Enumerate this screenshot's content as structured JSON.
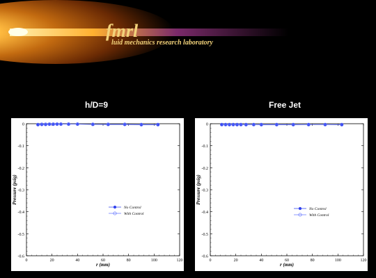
{
  "banner": {
    "logo_text": "fmrl",
    "subtitle": "luid mechanics research laboratory"
  },
  "panels": [
    {
      "title": "h/D=9"
    },
    {
      "title": "Free Jet"
    }
  ],
  "chart_data": [
    {
      "type": "scatter",
      "title": "h/D=9",
      "xlabel": "r (mm)",
      "ylabel": "Pressure (psig)",
      "xlim": [
        0,
        120
      ],
      "ylim": [
        -0.6,
        0
      ],
      "xticks": [
        "0",
        "20",
        "40",
        "60",
        "80",
        "100",
        "120"
      ],
      "yticks": [
        "0",
        "-0.1",
        "-0.2",
        "-0.3",
        "-0.4",
        "-0.5",
        "-0.6"
      ],
      "legend_position": "bottom-center",
      "series": [
        {
          "name": "No Control",
          "marker": "filled-circle",
          "color": "#3344ee",
          "x": [
            9,
            12,
            15,
            18,
            21,
            24,
            27,
            33,
            40,
            52,
            64,
            77,
            90,
            103
          ],
          "y": [
            -0.005,
            -0.004,
            -0.004,
            -0.003,
            -0.003,
            -0.002,
            -0.002,
            -0.002,
            -0.002,
            -0.003,
            -0.004,
            -0.004,
            -0.005,
            -0.005
          ]
        },
        {
          "name": "With Control",
          "marker": "open-circle",
          "color": "#6677ff",
          "x": [
            9,
            12,
            15,
            18,
            21,
            24,
            27,
            33,
            40,
            52,
            64,
            77,
            90,
            103
          ],
          "y": [
            -0.004,
            -0.003,
            -0.003,
            -0.002,
            -0.002,
            -0.002,
            -0.002,
            -0.002,
            -0.002,
            -0.003,
            -0.003,
            -0.003,
            -0.004,
            -0.004
          ]
        }
      ]
    },
    {
      "type": "scatter",
      "title": "Free Jet",
      "xlabel": "r (mm)",
      "ylabel": "Pressure (psig)",
      "xlim": [
        0,
        120
      ],
      "ylim": [
        -0.6,
        0
      ],
      "xticks": [
        "0",
        "20",
        "40",
        "60",
        "80",
        "100",
        "120"
      ],
      "yticks": [
        "0",
        "-0.1",
        "-0.2",
        "-0.3",
        "-0.4",
        "-0.5",
        "-0.6"
      ],
      "legend_position": "bottom-center",
      "series": [
        {
          "name": "No Control",
          "marker": "filled-circle",
          "color": "#3344ee",
          "x": [
            9,
            12,
            15,
            18,
            21,
            24,
            28,
            34,
            40,
            52,
            65,
            77,
            90,
            103
          ],
          "y": [
            -0.004,
            -0.004,
            -0.005,
            -0.004,
            -0.005,
            -0.004,
            -0.005,
            -0.004,
            -0.005,
            -0.005,
            -0.005,
            -0.004,
            -0.004,
            -0.005
          ]
        },
        {
          "name": "With Control",
          "marker": "open-circle",
          "color": "#6677ff",
          "x": [
            9,
            12,
            15,
            18,
            21,
            24,
            28,
            34,
            40,
            52,
            65,
            77,
            90,
            103
          ],
          "y": [
            -0.004,
            -0.004,
            -0.004,
            -0.004,
            -0.004,
            -0.004,
            -0.004,
            -0.004,
            -0.004,
            -0.004,
            -0.004,
            -0.004,
            -0.004,
            -0.004
          ]
        }
      ]
    }
  ]
}
